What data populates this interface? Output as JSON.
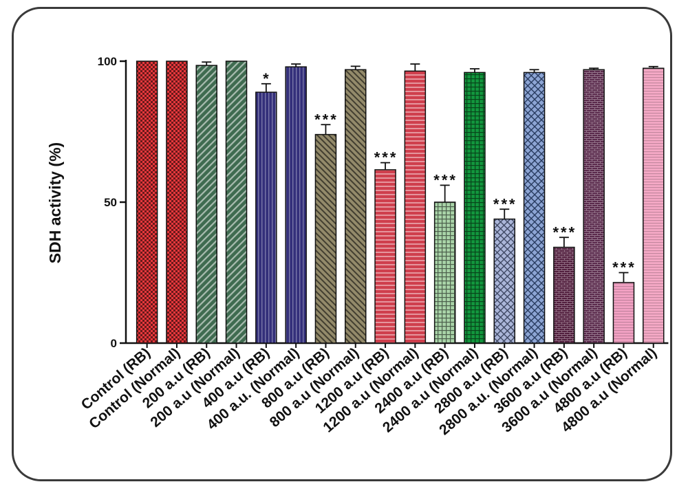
{
  "chart_data": {
    "type": "bar",
    "title": "",
    "xlabel": "",
    "ylabel": "SDH activity (%)",
    "ylim": [
      0,
      100
    ],
    "yticks": [
      0,
      50,
      100
    ],
    "grid": false,
    "legend": "none",
    "categories": [
      "Control (RB)",
      "Control (Normal)",
      "200 a.u (RB)",
      "200 a.u (Normal)",
      "400 a.u (RB)",
      "400 a.u. (Normal)",
      "800 a.u (RB)",
      "800 a.u (Normal)",
      "1200 a.u (RB)",
      "1200 a.u (Normal)",
      "2400 a.u (RB)",
      "2400 a.u (Normal)",
      "2800 a.u (RB)",
      "2800 a.u. (Normal)",
      "3600 a.u (RB)",
      "3600 a.u (Normal)",
      "4800 a.u (RB)",
      "4800 a.u (Normal)"
    ],
    "values": [
      100,
      100,
      98.5,
      100,
      89,
      98,
      74,
      97,
      61.5,
      96.5,
      50,
      96,
      44,
      96,
      34,
      97,
      21.5,
      97.5
    ],
    "errors": [
      0,
      0,
      1.2,
      0,
      3,
      1,
      3.5,
      1.2,
      2.5,
      2.5,
      6,
      1.3,
      3.5,
      1,
      3.5,
      0.5,
      3.5,
      0.6
    ],
    "significance": [
      "",
      "",
      "",
      "",
      "*",
      "",
      "***",
      "",
      "***",
      "",
      "***",
      "",
      "***",
      "",
      "***",
      "",
      "***",
      ""
    ],
    "colors": [
      "#e8383c",
      "#e8383c",
      "#3f6b50",
      "#3f6b50",
      "#332f7a",
      "#332f7a",
      "#938a6a",
      "#938a6a",
      "#cf3f4d",
      "#cf3f4d",
      "#a9d4a8",
      "#12963d",
      "#7d8fc5",
      "#4f75bd",
      "#521f3e",
      "#5a2a4c",
      "#f3a2c4",
      "#f5a9c6"
    ],
    "patterns": [
      "checker",
      "checker",
      "diag-down",
      "diag-down",
      "vlines",
      "vlines",
      "diag-up",
      "diag-up",
      "hlines",
      "hlines",
      "grid",
      "grid",
      "crosshatch",
      "crosshatch",
      "brick",
      "brick",
      "hlines-fine",
      "hlines-fine"
    ]
  }
}
